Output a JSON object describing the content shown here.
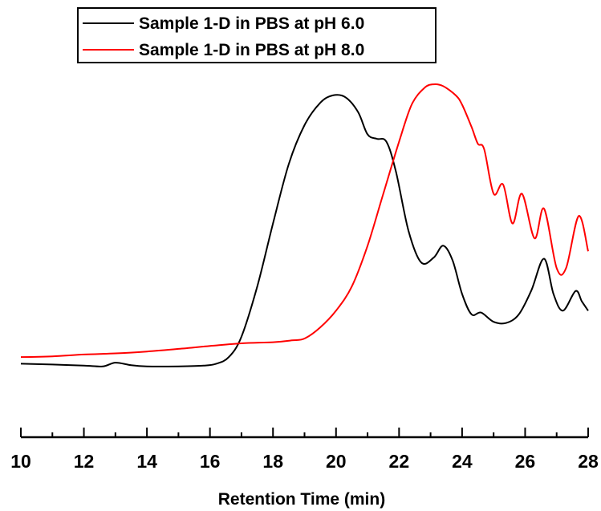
{
  "chart_data": {
    "type": "line",
    "title": "",
    "xlabel": "Retention Time (min)",
    "ylabel": "",
    "xlim": [
      10,
      28
    ],
    "ylim": [
      0,
      1
    ],
    "x_ticks": [
      "10",
      "12",
      "14",
      "16",
      "18",
      "20",
      "22",
      "24",
      "26",
      "28"
    ],
    "grid": false,
    "legend_position": "top-left",
    "series": [
      {
        "name": "Sample 1-D in PBS at pH 6.0",
        "color": "#000000",
        "points": [
          [
            10.0,
            0.262
          ],
          [
            11.0,
            0.26
          ],
          [
            12.0,
            0.257
          ],
          [
            12.6,
            0.255
          ],
          [
            13.0,
            0.265
          ],
          [
            13.5,
            0.258
          ],
          [
            14.0,
            0.255
          ],
          [
            15.0,
            0.255
          ],
          [
            15.8,
            0.257
          ],
          [
            16.2,
            0.262
          ],
          [
            16.6,
            0.28
          ],
          [
            17.0,
            0.335
          ],
          [
            17.5,
            0.47
          ],
          [
            18.0,
            0.64
          ],
          [
            18.5,
            0.8
          ],
          [
            19.0,
            0.905
          ],
          [
            19.5,
            0.965
          ],
          [
            19.9,
            0.985
          ],
          [
            20.3,
            0.98
          ],
          [
            20.7,
            0.94
          ],
          [
            21.0,
            0.88
          ],
          [
            21.3,
            0.868
          ],
          [
            21.6,
            0.86
          ],
          [
            21.9,
            0.78
          ],
          [
            22.3,
            0.62
          ],
          [
            22.7,
            0.535
          ],
          [
            23.1,
            0.548
          ],
          [
            23.4,
            0.58
          ],
          [
            23.7,
            0.54
          ],
          [
            24.0,
            0.45
          ],
          [
            24.3,
            0.395
          ],
          [
            24.6,
            0.4
          ],
          [
            25.0,
            0.375
          ],
          [
            25.4,
            0.372
          ],
          [
            25.8,
            0.395
          ],
          [
            26.2,
            0.46
          ],
          [
            26.6,
            0.545
          ],
          [
            26.9,
            0.45
          ],
          [
            27.2,
            0.405
          ],
          [
            27.6,
            0.458
          ],
          [
            27.8,
            0.43
          ],
          [
            28.0,
            0.405
          ]
        ]
      },
      {
        "name": "Sample 1-D in PBS at pH 8.0",
        "color": "#ff0000",
        "points": [
          [
            10.0,
            0.28
          ],
          [
            11.0,
            0.282
          ],
          [
            12.0,
            0.287
          ],
          [
            13.0,
            0.29
          ],
          [
            14.0,
            0.295
          ],
          [
            15.0,
            0.302
          ],
          [
            16.0,
            0.31
          ],
          [
            17.0,
            0.317
          ],
          [
            18.0,
            0.32
          ],
          [
            18.6,
            0.325
          ],
          [
            19.0,
            0.33
          ],
          [
            19.5,
            0.36
          ],
          [
            20.0,
            0.405
          ],
          [
            20.5,
            0.47
          ],
          [
            21.0,
            0.58
          ],
          [
            21.5,
            0.72
          ],
          [
            22.0,
            0.86
          ],
          [
            22.4,
            0.96
          ],
          [
            22.8,
            1.005
          ],
          [
            23.1,
            1.015
          ],
          [
            23.4,
            1.01
          ],
          [
            23.8,
            0.985
          ],
          [
            24.0,
            0.96
          ],
          [
            24.3,
            0.9
          ],
          [
            24.5,
            0.855
          ],
          [
            24.7,
            0.84
          ],
          [
            25.0,
            0.72
          ],
          [
            25.3,
            0.745
          ],
          [
            25.6,
            0.64
          ],
          [
            25.9,
            0.72
          ],
          [
            26.3,
            0.6
          ],
          [
            26.6,
            0.68
          ],
          [
            27.0,
            0.52
          ],
          [
            27.3,
            0.52
          ],
          [
            27.7,
            0.66
          ],
          [
            28.0,
            0.565
          ]
        ]
      }
    ]
  }
}
